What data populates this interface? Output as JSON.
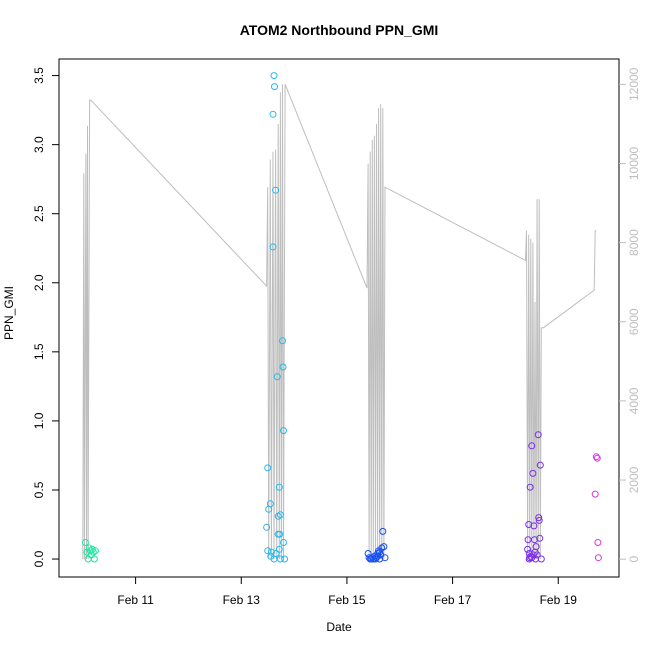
{
  "chart_data": {
    "type": "scatter",
    "title": "ATOM2 Northbound PPN_GMI",
    "xlabel": "Date",
    "ylabel": "PPN_GMI",
    "x_ticks": [
      "Feb 11",
      "Feb 13",
      "Feb 15",
      "Feb 17",
      "Feb 19"
    ],
    "x_tick_values": [
      11,
      13,
      15,
      17,
      19
    ],
    "xlim": [
      9.55,
      20.15
    ],
    "y_ticks": [
      "0.0",
      "0.5",
      "1.0",
      "1.5",
      "2.0",
      "2.5",
      "3.0",
      "3.5"
    ],
    "ylim": [
      -0.13,
      3.62
    ],
    "y2_ticks": [
      "0",
      "2000",
      "4000",
      "6000",
      "8000",
      "10000",
      "12000"
    ],
    "y2lim": [
      -450,
      12640
    ],
    "right_axis_color": "#bebebe",
    "line_color": "#bebebe",
    "grid": false,
    "series": [
      {
        "color": "#1ee6a0",
        "points": [
          [
            10.05,
            0.12
          ],
          [
            10.08,
            0.05
          ],
          [
            10.1,
            0.0
          ],
          [
            10.12,
            0.08
          ],
          [
            10.14,
            0.06
          ],
          [
            10.16,
            0.03
          ],
          [
            10.18,
            0.07
          ],
          [
            10.2,
            0.05
          ],
          [
            10.22,
            0.0
          ],
          [
            10.24,
            0.06
          ]
        ]
      },
      {
        "color": "#2ab8ea",
        "points": [
          [
            13.5,
            0.66
          ],
          [
            13.48,
            0.23
          ],
          [
            13.52,
            0.36
          ],
          [
            13.55,
            0.4
          ],
          [
            13.5,
            0.06
          ],
          [
            13.56,
            0.02
          ],
          [
            13.57,
            0.05
          ],
          [
            13.6,
            2.26
          ],
          [
            13.62,
            3.5
          ],
          [
            13.63,
            3.42
          ],
          [
            13.6,
            3.22
          ],
          [
            13.65,
            2.67
          ],
          [
            13.66,
            0.04
          ],
          [
            13.68,
            1.32
          ],
          [
            13.7,
            0.18
          ],
          [
            13.72,
            0.52
          ],
          [
            13.7,
            0.31
          ],
          [
            13.74,
            0.32
          ],
          [
            13.73,
            0.18
          ],
          [
            13.78,
            1.58
          ],
          [
            13.79,
            1.39
          ],
          [
            13.8,
            0.93
          ],
          [
            13.8,
            0.12
          ],
          [
            13.82,
            0.0
          ],
          [
            13.62,
            0.0
          ],
          [
            13.72,
            0.07
          ],
          [
            13.74,
            0.0
          ]
        ]
      },
      {
        "color": "#1a4ff0",
        "points": [
          [
            15.4,
            0.04
          ],
          [
            15.42,
            0.01
          ],
          [
            15.44,
            0.0
          ],
          [
            15.46,
            0.0
          ],
          [
            15.48,
            0.01
          ],
          [
            15.5,
            0.0
          ],
          [
            15.52,
            0.02
          ],
          [
            15.54,
            0.0
          ],
          [
            15.56,
            0.01
          ],
          [
            15.58,
            0.04
          ],
          [
            15.6,
            0.06
          ],
          [
            15.62,
            0.0
          ],
          [
            15.64,
            0.03
          ],
          [
            15.66,
            0.08
          ],
          [
            15.68,
            0.2
          ],
          [
            15.7,
            0.09
          ],
          [
            15.72,
            0.01
          ],
          [
            15.58,
            0.02
          ],
          [
            15.62,
            0.05
          ]
        ]
      },
      {
        "color": "#7a2ee8",
        "points": [
          [
            18.42,
            0.07
          ],
          [
            18.43,
            0.14
          ],
          [
            18.44,
            0.25
          ],
          [
            18.45,
            0.04
          ],
          [
            18.46,
            0.01
          ],
          [
            18.47,
            0.52
          ],
          [
            18.48,
            0.02
          ],
          [
            18.5,
            0.82
          ],
          [
            18.52,
            0.62
          ],
          [
            18.54,
            0.24
          ],
          [
            18.55,
            0.14
          ],
          [
            18.56,
            0.05
          ],
          [
            18.57,
            0.0
          ],
          [
            18.58,
            0.09
          ],
          [
            18.6,
            0.03
          ],
          [
            18.62,
            0.9
          ],
          [
            18.63,
            0.3
          ],
          [
            18.64,
            0.28
          ],
          [
            18.66,
            0.68
          ],
          [
            18.65,
            0.15
          ],
          [
            18.68,
            0.0
          ],
          [
            18.45,
            0.0
          ],
          [
            18.5,
            0.01
          ],
          [
            18.53,
            0.03
          ]
        ]
      },
      {
        "color": "#d936e0",
        "points": [
          [
            19.7,
            0.47
          ],
          [
            19.72,
            0.74
          ],
          [
            19.74,
            0.73
          ],
          [
            19.75,
            0.12
          ],
          [
            19.76,
            0.01
          ]
        ]
      }
    ],
    "secondary_line": {
      "x": [
        10.0,
        10.02,
        10.03,
        10.06,
        10.07,
        10.09,
        10.1,
        10.13,
        10.15,
        10.18,
        13.48,
        13.5,
        13.52,
        13.55,
        13.57,
        13.6,
        13.62,
        13.65,
        13.67,
        13.7,
        13.72,
        13.74,
        13.76,
        13.78,
        13.8,
        13.83,
        15.38,
        15.4,
        15.42,
        15.44,
        15.46,
        15.48,
        15.5,
        15.52,
        15.54,
        15.56,
        15.58,
        15.6,
        15.62,
        15.64,
        15.66,
        15.68,
        15.7,
        15.72,
        18.38,
        18.4,
        18.42,
        18.44,
        18.46,
        18.48,
        18.5,
        18.52,
        18.54,
        18.56,
        18.58,
        18.6,
        18.62,
        18.64,
        18.66,
        18.68,
        18.7,
        18.72,
        19.68,
        19.7,
        19.72
      ],
      "y": [
        0,
        9750,
        0,
        10250,
        0,
        10950,
        0,
        11600,
        11600,
        11560,
        6900,
        9400,
        0,
        10100,
        0,
        10300,
        0,
        10350,
        0,
        11000,
        0,
        11800,
        0,
        12000,
        0,
        12000,
        6850,
        10000,
        0,
        10300,
        0,
        10600,
        0,
        10700,
        0,
        11000,
        0,
        11400,
        0,
        11500,
        0,
        11400,
        0,
        9400,
        7550,
        8300,
        0,
        8200,
        0,
        8100,
        0,
        8000,
        0,
        6500,
        0,
        9100,
        0,
        9100,
        0,
        5850,
        5850,
        5850,
        6800,
        8300,
        8300
      ]
    }
  }
}
